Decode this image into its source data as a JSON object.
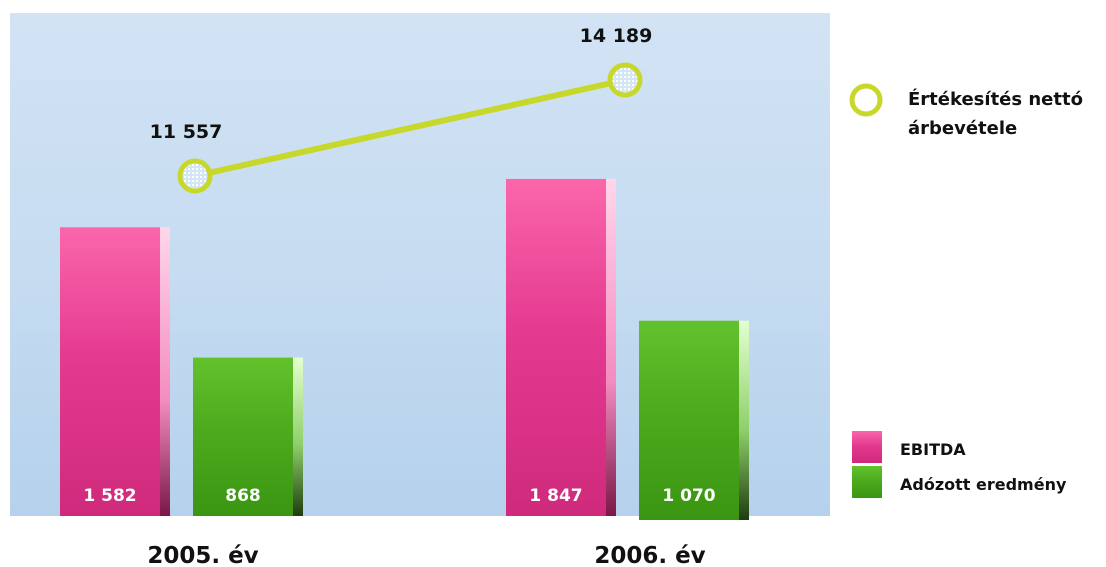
{
  "chart_data": {
    "type": "bar",
    "categories": [
      "2005. év",
      "2006. év"
    ],
    "series": [
      {
        "name": "EBITDA",
        "values": [
          1582,
          1847
        ],
        "labels": [
          "1 582",
          "1 847"
        ],
        "color": "#e4358e",
        "kind": "bar"
      },
      {
        "name": "Adózott eredmény",
        "values": [
          868,
          1070
        ],
        "labels": [
          "868",
          "1 070"
        ],
        "color": "#4ca41a",
        "kind": "bar"
      },
      {
        "name": "Értékesítés nettó árbevétele",
        "values": [
          11557,
          14189
        ],
        "labels": [
          "11 557",
          "14 189"
        ],
        "color": "#c8d82a",
        "kind": "line"
      }
    ],
    "legend": {
      "line_entry": [
        "Értékesítés nettó",
        "árbevétele"
      ],
      "bar_entries": [
        "EBITDA",
        "Adózott eredmény"
      ],
      "placement": "right"
    },
    "grid": false,
    "background": "#c9dff2",
    "xlabel": "",
    "ylabel": ""
  }
}
